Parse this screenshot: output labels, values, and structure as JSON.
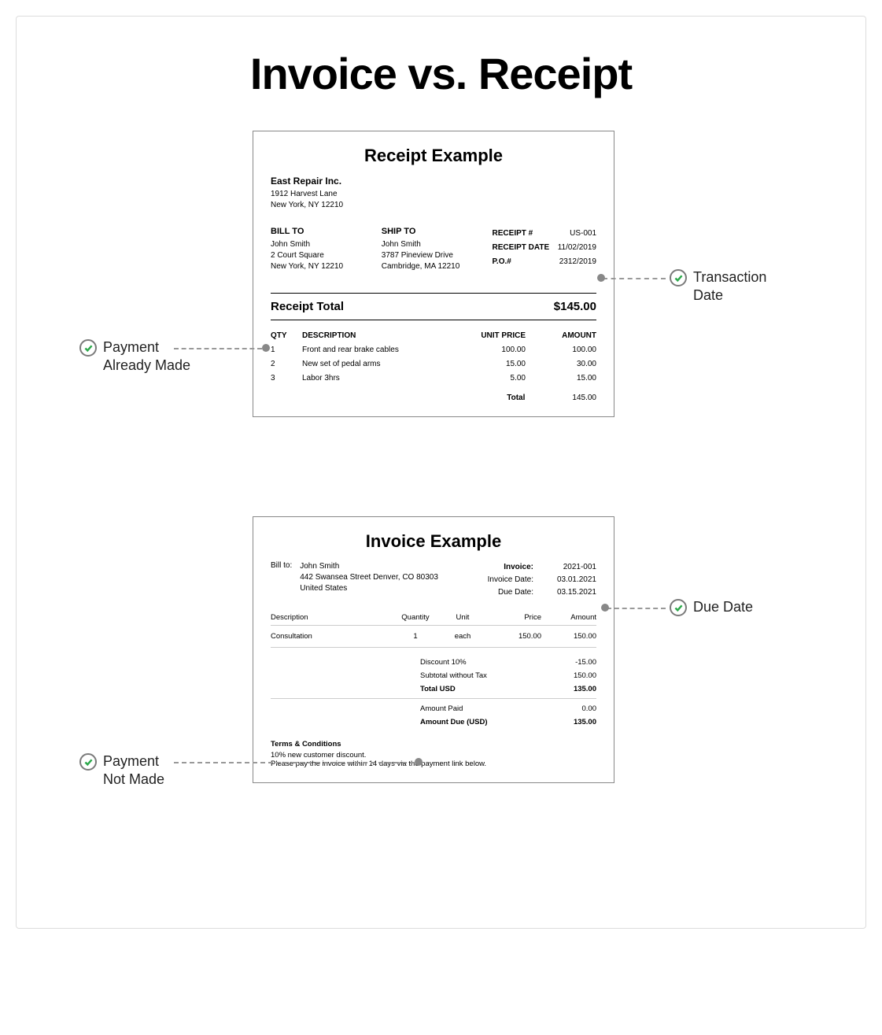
{
  "title": "Invoice vs. Receipt",
  "colors": {
    "border": "#888888",
    "check": "#2ba84a",
    "dash": "#999999",
    "dot": "#888888",
    "text": "#222222"
  },
  "receipt": {
    "title": "Receipt Example",
    "company": "East Repair Inc.",
    "company_addr1": "1912 Harvest Lane",
    "company_addr2": "New York, NY 12210",
    "bill_to": {
      "label": "BILL TO",
      "name": "John Smith",
      "addr1": "2 Court Square",
      "addr2": "New York, NY 12210"
    },
    "ship_to": {
      "label": "SHIP TO",
      "name": "John Smith",
      "addr1": "3787 Pineview Drive",
      "addr2": "Cambridge, MA 12210"
    },
    "meta": {
      "receipt_num_label": "RECEIPT #",
      "receipt_num": "US-001",
      "receipt_date_label": "RECEIPT DATE",
      "receipt_date": "11/02/2019",
      "po_label": "P.O.#",
      "po": "2312/2019"
    },
    "total_label": "Receipt Total",
    "total": "$145.00",
    "headers": {
      "qty": "QTY",
      "desc": "DESCRIPTION",
      "unit": "UNIT PRICE",
      "amt": "AMOUNT"
    },
    "items": [
      {
        "qty": "1",
        "desc": "Front and rear brake cables",
        "unit": "100.00",
        "amt": "100.00"
      },
      {
        "qty": "2",
        "desc": "New set of pedal arms",
        "unit": "15.00",
        "amt": "30.00"
      },
      {
        "qty": "3",
        "desc": "Labor 3hrs",
        "unit": "5.00",
        "amt": "15.00"
      }
    ],
    "items_total_label": "Total",
    "items_total": "145.00"
  },
  "invoice": {
    "title": "Invoice Example",
    "bill_to_label": "Bill to:",
    "bill_to": {
      "name": "John Smith",
      "addr1": "442 Swansea Street Denver, CO 80303",
      "addr2": "United States"
    },
    "meta": {
      "invoice_label": "Invoice:",
      "invoice": "2021-001",
      "date_label": "Invoice Date:",
      "date": "03.01.2021",
      "due_label": "Due Date:",
      "due": "03.15.2021"
    },
    "headers": {
      "desc": "Description",
      "qty": "Quantity",
      "unit": "Unit",
      "price": "Price",
      "amt": "Amount"
    },
    "items": [
      {
        "desc": "Consultation",
        "qty": "1",
        "unit": "each",
        "price": "150.00",
        "amt": "150.00"
      }
    ],
    "summary": {
      "discount_label": "Discount 10%",
      "discount": "-15.00",
      "subtotal_label": "Subtotal without Tax",
      "subtotal": "150.00",
      "total_label": "Total USD",
      "total": "135.00",
      "paid_label": "Amount Paid",
      "paid": "0.00",
      "due_label": "Amount Due (USD)",
      "due": "135.00"
    },
    "terms_title": "Terms & Conditions",
    "terms1": "10% new customer discount.",
    "terms2": "Please pay the invoice within 14 days via the payment link below."
  },
  "callouts": {
    "payment_made": "Payment\nAlready Made",
    "transaction_date": "Transaction\nDate",
    "payment_not_made": "Payment\nNot Made",
    "due_date": "Due Date"
  }
}
